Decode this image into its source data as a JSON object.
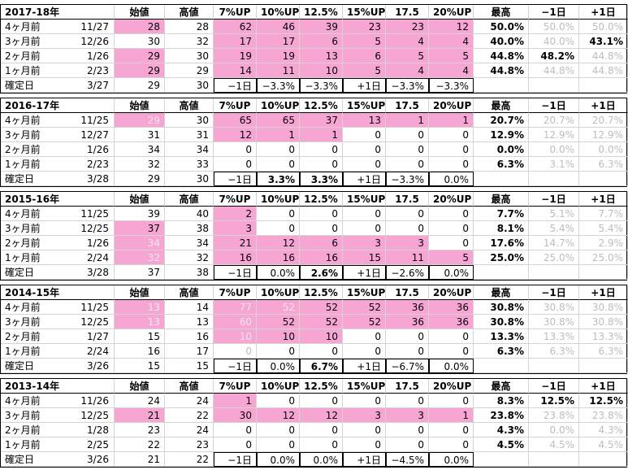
{
  "blocks": [
    {
      "title": "2017-18年",
      "columns": [
        "始値",
        "高値",
        "7%UP",
        "10%UP",
        "12.5%",
        "15%UP",
        "17.5",
        "20%UP",
        "最高",
        "−1日",
        "+1日"
      ],
      "rows": [
        {
          "label": "4ヶ月前",
          "date": "11/27",
          "cells": [
            28,
            28,
            62,
            46,
            39,
            23,
            23,
            12,
            "50.0%",
            "50.0%",
            "50.0%"
          ],
          "pink": [
            0,
            2,
            3,
            4,
            5,
            6,
            7
          ],
          "dim": [
            9,
            10
          ],
          "bold": []
        },
        {
          "label": "3ヶ月前",
          "date": "12/26",
          "cells": [
            30,
            32,
            17,
            17,
            6,
            5,
            4,
            4,
            "40.0%",
            "40.0%",
            "43.1%"
          ],
          "pink": [
            2,
            3,
            4,
            5,
            6,
            7
          ],
          "dim": [
            9
          ],
          "bold": [
            10
          ]
        },
        {
          "label": "2ヶ月前",
          "date": "1/26",
          "cells": [
            29,
            30,
            19,
            19,
            13,
            6,
            5,
            5,
            "44.8%",
            "48.2%",
            "44.8%"
          ],
          "pink": [
            0,
            2,
            3,
            4,
            5,
            6,
            7
          ],
          "dim": [
            10
          ],
          "bold": [
            9
          ]
        },
        {
          "label": "1ヶ月前",
          "date": "2/23",
          "cells": [
            29,
            29,
            14,
            11,
            10,
            5,
            4,
            4,
            "44.8%",
            "44.8%",
            "44.8%"
          ],
          "pink": [
            0,
            2,
            3,
            4,
            5,
            6,
            7
          ],
          "dim": [
            9,
            10
          ],
          "bold": []
        },
        {
          "label": "確定日",
          "date": "3/27",
          "cells": [
            29,
            30,
            "−1日",
            "−3.3%",
            "−3.3%",
            "+1日",
            "−3.3%",
            "−3.3%"
          ],
          "pink": [],
          "dim": [],
          "bold": []
        }
      ]
    },
    {
      "title": "2016-17年",
      "columns": [
        "始値",
        "高値",
        "7%UP",
        "10%UP",
        "12.5%",
        "15%UP",
        "17.5",
        "20%UP",
        "最高",
        "−1日",
        "+1日"
      ],
      "rows": [
        {
          "label": "4ヶ月前",
          "date": "11/25",
          "cells": [
            29,
            30,
            65,
            65,
            37,
            13,
            1,
            1,
            "20.7%",
            "20.7%",
            "20.7%"
          ],
          "pink": [
            0,
            2,
            3,
            4,
            5,
            6,
            7
          ],
          "dim": [
            0,
            9,
            10
          ],
          "bold": []
        },
        {
          "label": "3ヶ月前",
          "date": "12/27",
          "cells": [
            31,
            31,
            12,
            1,
            1,
            0,
            0,
            0,
            "12.9%",
            "12.9%",
            "12.9%"
          ],
          "pink": [
            2,
            3,
            4
          ],
          "dim": [
            9,
            10
          ],
          "bold": []
        },
        {
          "label": "2ヶ月前",
          "date": "1/26",
          "cells": [
            34,
            34,
            0,
            0,
            0,
            0,
            0,
            0,
            "0.0%",
            "0.0%",
            "0.0%"
          ],
          "pink": [],
          "dim": [
            9,
            10
          ],
          "bold": []
        },
        {
          "label": "1ヶ月前",
          "date": "2/23",
          "cells": [
            32,
            33,
            0,
            0,
            0,
            0,
            0,
            0,
            "6.3%",
            "3.1%",
            "6.3%"
          ],
          "pink": [],
          "dim": [
            9,
            10
          ],
          "bold": []
        },
        {
          "label": "確定日",
          "date": "3/28",
          "cells": [
            29,
            30,
            "−1日",
            "3.3%",
            "3.3%",
            "+1日",
            "−3.3%",
            "0.0%"
          ],
          "pink": [],
          "dim": [],
          "bold": [
            3,
            4
          ]
        }
      ]
    },
    {
      "title": "2015-16年",
      "columns": [
        "始値",
        "高値",
        "7%UP",
        "10%UP",
        "12.5%",
        "15%UP",
        "17.5",
        "20%UP",
        "最高",
        "−1日",
        "+1日"
      ],
      "rows": [
        {
          "label": "4ヶ月前",
          "date": "11/25",
          "cells": [
            39,
            40,
            2,
            0,
            0,
            0,
            0,
            0,
            "7.7%",
            "5.1%",
            "7.7%"
          ],
          "pink": [
            2
          ],
          "dim": [
            9,
            10
          ],
          "bold": []
        },
        {
          "label": "3ヶ月前",
          "date": "12/25",
          "cells": [
            37,
            38,
            3,
            0,
            0,
            0,
            0,
            0,
            "8.1%",
            "5.4%",
            "5.4%"
          ],
          "pink": [
            0,
            2
          ],
          "dim": [
            9,
            10
          ],
          "bold": []
        },
        {
          "label": "2ヶ月前",
          "date": "1/26",
          "cells": [
            34,
            34,
            21,
            12,
            6,
            3,
            3,
            0,
            "17.6%",
            "14.7%",
            "2.9%"
          ],
          "pink": [
            0,
            2,
            3,
            4,
            5,
            6
          ],
          "dim": [
            0,
            9,
            10
          ],
          "bold": []
        },
        {
          "label": "1ヶ月前",
          "date": "2/24",
          "cells": [
            32,
            32,
            16,
            16,
            16,
            15,
            11,
            5,
            "25.0%",
            "25.0%",
            "25.0%"
          ],
          "pink": [
            0,
            2,
            3,
            4,
            5,
            6,
            7
          ],
          "dim": [
            0,
            9,
            10
          ],
          "bold": []
        },
        {
          "label": "確定日",
          "date": "3/28",
          "cells": [
            37,
            38,
            "−1日",
            "0.0%",
            "2.6%",
            "+1日",
            "−2.6%",
            "0.0%"
          ],
          "pink": [],
          "dim": [],
          "bold": [
            4
          ]
        }
      ]
    },
    {
      "title": "2014-15年",
      "columns": [
        "始値",
        "高値",
        "7%UP",
        "10%UP",
        "12.5%",
        "15%UP",
        "17.5",
        "20%UP",
        "最高",
        "−1日",
        "+1日"
      ],
      "rows": [
        {
          "label": "4ヶ月前",
          "date": "11/25",
          "cells": [
            13,
            14,
            77,
            52,
            52,
            52,
            36,
            36,
            "30.8%",
            "30.8%",
            "30.8%"
          ],
          "pink": [
            0,
            2,
            3,
            4,
            5,
            6,
            7
          ],
          "dim": [
            0,
            2,
            3,
            9,
            10
          ],
          "bold": []
        },
        {
          "label": "3ヶ月前",
          "date": "12/25",
          "cells": [
            13,
            13,
            60,
            52,
            52,
            52,
            36,
            36,
            "30.8%",
            "30.8%",
            "30.8%"
          ],
          "pink": [
            0,
            2,
            3,
            4,
            5,
            6,
            7
          ],
          "dim": [
            0,
            2,
            9,
            10
          ],
          "bold": []
        },
        {
          "label": "2ヶ月前",
          "date": "1/27",
          "cells": [
            15,
            16,
            10,
            10,
            10,
            0,
            0,
            0,
            "13.3%",
            "13.3%",
            "13.3%"
          ],
          "pink": [
            2,
            3,
            4
          ],
          "dim": [
            2,
            9,
            10
          ],
          "bold": []
        },
        {
          "label": "1ヶ月前",
          "date": "2/24",
          "cells": [
            16,
            17,
            0,
            0,
            0,
            0,
            0,
            0,
            "6.3%",
            "6.3%",
            "6.3%"
          ],
          "pink": [],
          "dim": [
            2,
            9,
            10
          ],
          "bold": []
        },
        {
          "label": "確定日",
          "date": "3/26",
          "cells": [
            15,
            15,
            "−1日",
            "0.0%",
            "6.7%",
            "+1日",
            "−6.7%",
            "0.0%"
          ],
          "pink": [],
          "dim": [],
          "bold": [
            4
          ]
        }
      ]
    },
    {
      "title": "2013-14年",
      "columns": [
        "始値",
        "高値",
        "7%UP",
        "10%UP",
        "12.5%",
        "15%UP",
        "17.5",
        "20%UP",
        "最高",
        "−1日",
        "+1日"
      ],
      "rows": [
        {
          "label": "4ヶ月前",
          "date": "11/26",
          "cells": [
            24,
            24,
            1,
            0,
            0,
            0,
            0,
            0,
            "8.3%",
            "12.5%",
            "12.5%"
          ],
          "pink": [
            2
          ],
          "dim": [],
          "bold": [
            9,
            10
          ]
        },
        {
          "label": "3ヶ月前",
          "date": "12/25",
          "cells": [
            21,
            22,
            30,
            12,
            12,
            3,
            3,
            1,
            "23.8%",
            "23.8%",
            "23.8%"
          ],
          "pink": [
            0,
            2,
            3,
            4,
            5,
            6,
            7
          ],
          "dim": [
            9,
            10
          ],
          "bold": []
        },
        {
          "label": "2ヶ月前",
          "date": "1/28",
          "cells": [
            23,
            24,
            0,
            0,
            0,
            0,
            0,
            0,
            "4.3%",
            "0.0%",
            "4.3%"
          ],
          "pink": [],
          "dim": [
            9,
            10
          ],
          "bold": []
        },
        {
          "label": "1ヶ月前",
          "date": "2/25",
          "cells": [
            22,
            23,
            0,
            0,
            0,
            0,
            0,
            0,
            "4.5%",
            "4.5%",
            "4.5%"
          ],
          "pink": [],
          "dim": [
            9,
            10
          ],
          "bold": []
        },
        {
          "label": "確定日",
          "date": "3/26",
          "cells": [
            21,
            22,
            "−1日",
            "0.0%",
            "0.0%",
            "+1日",
            "−4.5%",
            "0.0%"
          ],
          "pink": [],
          "dim": [],
          "bold": []
        }
      ]
    }
  ]
}
